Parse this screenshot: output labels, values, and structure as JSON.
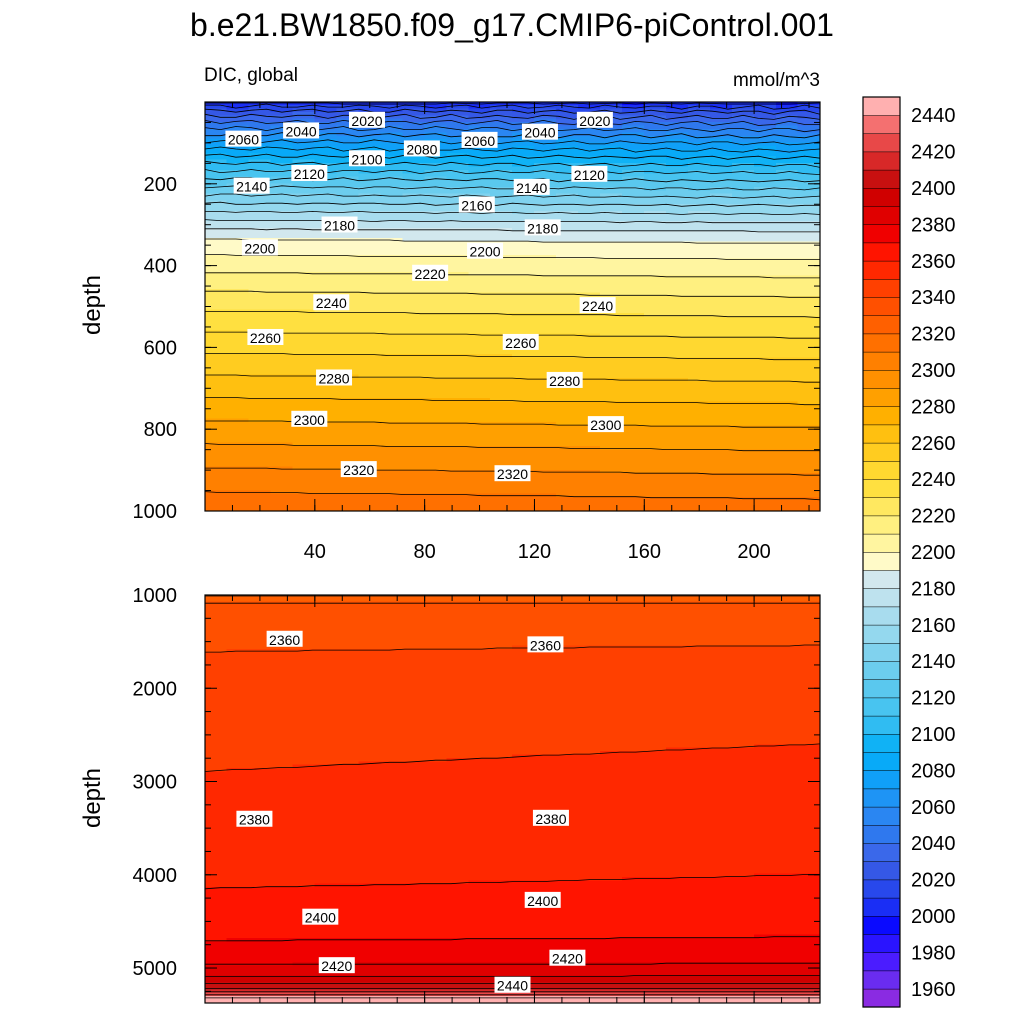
{
  "title": "b.e21.BW1850.f09_g17.CMIP6-piControl.001",
  "subtitle_left": "DIC, global",
  "subtitle_right": "mmol/m^3",
  "chart_data": [
    {
      "type": "heatmap",
      "panel": "upper",
      "ylabel": "depth",
      "xlim": [
        0,
        224
      ],
      "ylim": [
        1000,
        0
      ],
      "xticks": [
        "40",
        "80",
        "120",
        "160",
        "200"
      ],
      "xtick_values": [
        40,
        80,
        120,
        160,
        200
      ],
      "yticks": [
        "200",
        "400",
        "600",
        "800",
        "1000"
      ],
      "ytick_values": [
        200,
        400,
        600,
        800,
        1000
      ],
      "contour_labels": [
        {
          "t": "2060",
          "x": 14,
          "y": 92
        },
        {
          "t": "2040",
          "x": 35,
          "y": 72
        },
        {
          "t": "2020",
          "x": 59,
          "y": 46
        },
        {
          "t": "2080",
          "x": 79,
          "y": 116
        },
        {
          "t": "2060",
          "x": 100,
          "y": 95
        },
        {
          "t": "2040",
          "x": 122,
          "y": 75
        },
        {
          "t": "2020",
          "x": 142,
          "y": 46
        },
        {
          "t": "2100",
          "x": 59,
          "y": 140
        },
        {
          "t": "2120",
          "x": 38,
          "y": 176
        },
        {
          "t": "2140",
          "x": 17,
          "y": 207
        },
        {
          "t": "2120",
          "x": 140,
          "y": 178
        },
        {
          "t": "2140",
          "x": 119,
          "y": 210
        },
        {
          "t": "2160",
          "x": 99,
          "y": 253
        },
        {
          "t": "2180",
          "x": 49,
          "y": 302
        },
        {
          "t": "2180",
          "x": 123,
          "y": 309
        },
        {
          "t": "2200",
          "x": 20,
          "y": 358
        },
        {
          "t": "2200",
          "x": 102,
          "y": 366
        },
        {
          "t": "2220",
          "x": 82,
          "y": 420
        },
        {
          "t": "2240",
          "x": 46,
          "y": 492
        },
        {
          "t": "2240",
          "x": 143,
          "y": 499
        },
        {
          "t": "2260",
          "x": 22,
          "y": 577
        },
        {
          "t": "2260",
          "x": 115,
          "y": 589
        },
        {
          "t": "2280",
          "x": 47,
          "y": 676
        },
        {
          "t": "2280",
          "x": 131,
          "y": 682
        },
        {
          "t": "2300",
          "x": 38,
          "y": 777
        },
        {
          "t": "2300",
          "x": 146,
          "y": 790
        },
        {
          "t": "2320",
          "x": 56,
          "y": 900
        },
        {
          "t": "2320",
          "x": 112,
          "y": 910
        }
      ]
    },
    {
      "type": "heatmap",
      "panel": "lower",
      "ylabel": "depth",
      "xlim": [
        0,
        224
      ],
      "ylim": [
        5375,
        1000
      ],
      "yticks": [
        "1000",
        "2000",
        "3000",
        "4000",
        "5000"
      ],
      "ytick_values": [
        1000,
        2000,
        3000,
        4000,
        5000
      ],
      "contour_labels": [
        {
          "t": "2360",
          "x": 29,
          "y": 1480
        },
        {
          "t": "2360",
          "x": 124,
          "y": 1540
        },
        {
          "t": "2380",
          "x": 18,
          "y": 3410
        },
        {
          "t": "2380",
          "x": 126,
          "y": 3400
        },
        {
          "t": "2400",
          "x": 42,
          "y": 4460
        },
        {
          "t": "2400",
          "x": 123,
          "y": 4280
        },
        {
          "t": "2420",
          "x": 48,
          "y": 4980
        },
        {
          "t": "2420",
          "x": 132,
          "y": 4900
        },
        {
          "t": "2440",
          "x": 112,
          "y": 5190
        }
      ]
    },
    {
      "type": "colorbar",
      "levels": [
        1960,
        1970,
        1980,
        1990,
        2000,
        2010,
        2020,
        2030,
        2040,
        2050,
        2060,
        2070,
        2080,
        2090,
        2100,
        2110,
        2120,
        2130,
        2140,
        2150,
        2160,
        2170,
        2180,
        2190,
        2200,
        2210,
        2220,
        2230,
        2240,
        2250,
        2260,
        2270,
        2280,
        2290,
        2300,
        2310,
        2320,
        2330,
        2340,
        2350,
        2360,
        2370,
        2380,
        2390,
        2400,
        2410,
        2420,
        2430,
        2440,
        2450
      ],
      "labels": [
        "1960",
        "1980",
        "2000",
        "2020",
        "2040",
        "2060",
        "2080",
        "2100",
        "2120",
        "2140",
        "2160",
        "2180",
        "2200",
        "2220",
        "2240",
        "2260",
        "2280",
        "2300",
        "2320",
        "2340",
        "2360",
        "2380",
        "2400",
        "2420",
        "2440"
      ],
      "label_values": [
        1960,
        1980,
        2000,
        2020,
        2040,
        2060,
        2080,
        2100,
        2120,
        2140,
        2160,
        2180,
        2200,
        2220,
        2240,
        2260,
        2280,
        2300,
        2320,
        2340,
        2360,
        2380,
        2400,
        2420,
        2440
      ],
      "colors": [
        "#8a2be2",
        "#6a2cf0",
        "#4b1cff",
        "#2a14ff",
        "#0a0aff",
        "#1a2ef5",
        "#2848ec",
        "#3558e6",
        "#3a68ea",
        "#2f78ee",
        "#2a86f2",
        "#1e94f5",
        "#10a0f8",
        "#08aaf8",
        "#10b2f5",
        "#30bcf2",
        "#48c4f0",
        "#5ac8ee",
        "#6ccdee",
        "#80d2ee",
        "#94d8ee",
        "#a8dcee",
        "#bee2ee",
        "#d2e8ee",
        "#fffac8",
        "#fff5a0",
        "#fff080",
        "#ffe860",
        "#ffe040",
        "#ffd830",
        "#ffcc20",
        "#ffc010",
        "#ffb000",
        "#ffa000",
        "#ff9000",
        "#ff8000",
        "#ff7000",
        "#ff6000",
        "#ff5000",
        "#ff4000",
        "#ff2800",
        "#ff1400",
        "#f00000",
        "#e00000",
        "#d00000",
        "#c81010",
        "#d82828",
        "#e84848",
        "#f47070",
        "#ffb0b0"
      ]
    }
  ]
}
